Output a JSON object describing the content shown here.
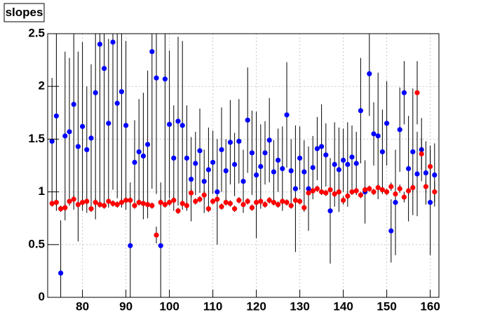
{
  "chart_data": {
    "type": "scatter",
    "title": "slopes",
    "xlim": [
      72,
      162
    ],
    "ylim": [
      0,
      2.5
    ],
    "xticks": [
      80,
      90,
      100,
      110,
      120,
      130,
      140,
      150,
      160
    ],
    "yticks": [
      0,
      0.5,
      1,
      1.5,
      2,
      2.5
    ],
    "grid": true,
    "x": [
      73,
      74,
      75,
      76,
      77,
      78,
      79,
      80,
      81,
      82,
      83,
      84,
      85,
      86,
      87,
      88,
      89,
      90,
      91,
      92,
      93,
      94,
      95,
      96,
      97,
      98,
      99,
      100,
      101,
      102,
      103,
      104,
      105,
      106,
      107,
      108,
      109,
      110,
      111,
      112,
      113,
      114,
      115,
      116,
      117,
      118,
      119,
      120,
      121,
      122,
      123,
      124,
      125,
      126,
      127,
      128,
      129,
      130,
      131,
      132,
      133,
      134,
      135,
      136,
      137,
      138,
      139,
      140,
      141,
      142,
      143,
      144,
      145,
      146,
      147,
      148,
      149,
      150,
      151,
      152,
      153,
      154,
      155,
      156,
      157,
      158,
      159,
      160,
      161
    ],
    "series": [
      {
        "color": "#0000ff",
        "values": [
          1.48,
          1.72,
          0.23,
          1.53,
          1.57,
          1.83,
          1.43,
          1.62,
          1.4,
          1.51,
          1.94,
          2.4,
          2.17,
          1.65,
          2.42,
          1.84,
          1.95,
          1.63,
          0.49,
          1.28,
          1.38,
          1.34,
          1.45,
          2.33,
          2.08,
          0.49,
          2.07,
          1.64,
          1.32,
          1.67,
          1.63,
          1.32,
          1.12,
          1.27,
          1.39,
          1.1,
          1.21,
          1.28,
          1.0,
          1.4,
          1.2,
          1.47,
          1.26,
          1.48,
          1.1,
          1.68,
          1.37,
          1.16,
          1.24,
          1.37,
          1.49,
          1.19,
          1.3,
          1.22,
          1.73,
          1.2,
          1.03,
          1.32,
          1.19,
          1.03,
          1.23,
          1.41,
          1.43,
          1.35,
          0.82,
          1.26,
          1.21,
          1.3,
          1.26,
          1.33,
          1.27,
          1.77,
          1.0,
          2.12,
          1.55,
          1.53,
          1.38,
          1.65,
          0.63,
          0.9,
          1.59,
          1.94,
          1.22,
          1.38,
          1.17,
          1.4,
          1.18,
          0.9,
          1.16
        ],
        "errors": [
          0.6,
          0.9,
          0.5,
          0.8,
          0.7,
          1.0,
          0.9,
          0.8,
          0.6,
          0.7,
          1.2,
          1.5,
          1.3,
          0.8,
          1.4,
          0.9,
          1.1,
          0.8,
          0.6,
          0.4,
          0.5,
          0.6,
          0.7,
          1.3,
          1.1,
          0.6,
          1.2,
          0.7,
          0.5,
          0.8,
          0.8,
          0.5,
          0.4,
          0.3,
          0.4,
          0.3,
          0.4,
          0.3,
          0.5,
          0.4,
          0.3,
          0.4,
          0.3,
          0.4,
          0.3,
          0.5,
          0.4,
          0.6,
          0.4,
          0.3,
          0.4,
          0.3,
          0.3,
          0.4,
          0.5,
          0.3,
          0.6,
          0.3,
          0.3,
          0.4,
          0.3,
          0.3,
          0.4,
          0.3,
          0.5,
          0.4,
          0.4,
          0.3,
          0.4,
          0.3,
          0.3,
          0.5,
          0.3,
          0.4,
          0.3,
          0.6,
          0.4,
          0.4,
          0.3,
          0.5,
          0.4,
          0.3,
          0.5,
          0.6,
          0.4,
          0.3,
          0.3,
          0.5,
          0.3
        ]
      },
      {
        "color": "#ff0000",
        "values": [
          0.89,
          0.9,
          0.84,
          0.85,
          0.91,
          0.93,
          0.88,
          0.9,
          0.91,
          0.84,
          0.9,
          0.88,
          0.87,
          0.91,
          0.89,
          0.88,
          0.9,
          0.92,
          0.92,
          0.87,
          0.9,
          0.89,
          0.88,
          0.87,
          0.59,
          0.9,
          0.88,
          0.9,
          0.92,
          0.82,
          0.89,
          0.87,
          0.99,
          0.91,
          0.93,
          0.97,
          0.84,
          0.91,
          0.93,
          0.86,
          0.9,
          0.89,
          0.84,
          0.92,
          0.88,
          0.91,
          0.85,
          0.9,
          0.91,
          0.88,
          0.92,
          0.9,
          0.88,
          0.91,
          0.9,
          0.87,
          0.92,
          0.91,
          0.85,
          0.99,
          1.01,
          1.03,
          1.0,
          0.99,
          1.02,
          0.98,
          1.0,
          0.92,
          0.96,
          1.0,
          1.01,
          0.97,
          1.02,
          1.03,
          1.0,
          1.04,
          1.02,
          1.0,
          1.05,
          0.98,
          1.03,
          0.95,
          1.01,
          1.04,
          1.94,
          1.36,
          1.05,
          1.24,
          1.0
        ],
        "errors": [
          0.03,
          0.03,
          0.03,
          0.03,
          0.03,
          0.04,
          0.03,
          0.03,
          0.03,
          0.03,
          0.04,
          0.03,
          0.03,
          0.03,
          0.03,
          0.03,
          0.04,
          0.03,
          0.03,
          0.03,
          0.03,
          0.03,
          0.03,
          0.03,
          0.08,
          0.03,
          0.03,
          0.03,
          0.03,
          0.03,
          0.03,
          0.03,
          0.04,
          0.03,
          0.03,
          0.04,
          0.03,
          0.03,
          0.03,
          0.03,
          0.03,
          0.03,
          0.03,
          0.03,
          0.03,
          0.03,
          0.03,
          0.03,
          0.03,
          0.03,
          0.03,
          0.03,
          0.03,
          0.03,
          0.03,
          0.03,
          0.03,
          0.03,
          0.04,
          0.03,
          0.03,
          0.03,
          0.03,
          0.03,
          0.03,
          0.03,
          0.03,
          0.04,
          0.03,
          0.03,
          0.03,
          0.03,
          0.03,
          0.03,
          0.03,
          0.03,
          0.03,
          0.03,
          0.04,
          0.03,
          0.04,
          0.05,
          0.04,
          0.04,
          0.3,
          0.15,
          0.06,
          0.2,
          0.1
        ]
      }
    ]
  }
}
